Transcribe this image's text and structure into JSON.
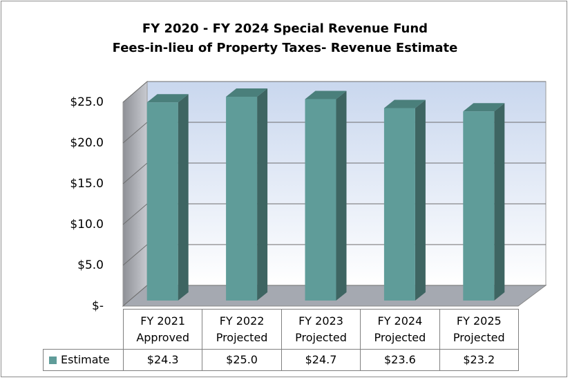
{
  "chart_data": {
    "type": "bar3d",
    "title": "FY 2020 - FY 2024  Special Revenue Fund\nFees-in-lieu of Property Taxes- Revenue Estimate",
    "categories": [
      "FY 2021\nApproved",
      "FY 2022\nProjected",
      "FY 2023\nProjected",
      "FY 2024\nProjected",
      "FY 2025\nProjected"
    ],
    "series": [
      {
        "name": "Estimate",
        "color": "#5f9c99",
        "values": [
          24.3,
          25.0,
          24.7,
          23.6,
          23.2
        ],
        "value_labels": [
          "$24.3",
          "$25.0",
          "$24.7",
          "$23.6",
          "$23.2"
        ]
      }
    ],
    "ylim": [
      0,
      25
    ],
    "yticks": [
      {
        "value": 0,
        "label": "$-"
      },
      {
        "value": 5,
        "label": "$5.0"
      },
      {
        "value": 10,
        "label": "$10.0"
      },
      {
        "value": 15,
        "label": "$15.0"
      },
      {
        "value": 20,
        "label": "$20.0"
      },
      {
        "value": 25,
        "label": "$25.0"
      }
    ],
    "grid": true
  }
}
